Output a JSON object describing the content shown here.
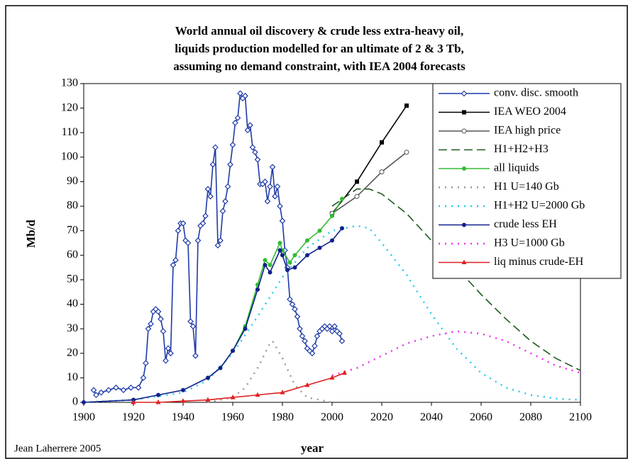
{
  "chart_data": {
    "type": "line",
    "title": [
      "World annual oil discovery & crude less extra-heavy oil,",
      "liquids production modelled for an ultimate of 2 & 3 Tb,",
      "assuming no demand constraint, with IEA 2004 forecasts"
    ],
    "y_label": "Mb/d",
    "x_label": "year",
    "credit": "Jean Laherrere 2005",
    "xlim": [
      1900,
      2100
    ],
    "xticks": [
      1900,
      1920,
      1940,
      1960,
      1980,
      2000,
      2020,
      2040,
      2060,
      2080,
      2100
    ],
    "ylim": [
      0,
      130
    ],
    "yticks": [
      0,
      10,
      20,
      30,
      40,
      50,
      60,
      70,
      80,
      90,
      100,
      110,
      120,
      130
    ],
    "grid": false,
    "legend": "upper right",
    "series": [
      {
        "name": "conv. disc. smooth",
        "color": "#1f3aa8",
        "marker": "open-diamond",
        "dash": "solid",
        "x": [
          1904,
          1905,
          1907,
          1910,
          1913,
          1916,
          1919,
          1922,
          1924,
          1925,
          1926,
          1927,
          1928,
          1929,
          1930,
          1931,
          1932,
          1933,
          1934,
          1935,
          1936,
          1937,
          1938,
          1939,
          1940,
          1941,
          1942,
          1943,
          1944,
          1945,
          1946,
          1947,
          1948,
          1949,
          1950,
          1951,
          1952,
          1953,
          1954,
          1955,
          1956,
          1957,
          1958,
          1959,
          1960,
          1961,
          1962,
          1963,
          1964,
          1965,
          1966,
          1967,
          1968,
          1969,
          1970,
          1971,
          1972,
          1973,
          1974,
          1975,
          1976,
          1977,
          1978,
          1979,
          1980,
          1981,
          1982,
          1983,
          1984,
          1985,
          1986,
          1987,
          1988,
          1989,
          1990,
          1991,
          1992,
          1993,
          1994,
          1995,
          1996,
          1997,
          1998,
          1999,
          2000,
          2001,
          2002,
          2003,
          2004
        ],
        "values": [
          5,
          3,
          4,
          5,
          6,
          5,
          6,
          6,
          10,
          16,
          30,
          32,
          37,
          38,
          37,
          34,
          29,
          17,
          22,
          20,
          56,
          58,
          70,
          73,
          73,
          66,
          65,
          33,
          31,
          19,
          66,
          72,
          73,
          76,
          87,
          84,
          97,
          104,
          64,
          66,
          78,
          82,
          88,
          97,
          105,
          114,
          116,
          126,
          124,
          125,
          111,
          113,
          104,
          102,
          99,
          89,
          89,
          90,
          82,
          88,
          96,
          84,
          88,
          80,
          74,
          62,
          55,
          42,
          40,
          38,
          35,
          30,
          27,
          25,
          22,
          21,
          20,
          23,
          27,
          29,
          30,
          31,
          30,
          31,
          29,
          31,
          29,
          28,
          25
        ]
      },
      {
        "name": "IEA WEO 2004",
        "color": "#000000",
        "marker": "square",
        "dash": "solid",
        "x": [
          2000,
          2010,
          2020,
          2030
        ],
        "values": [
          77,
          90,
          106,
          121
        ]
      },
      {
        "name": "IEA high price",
        "color": "#555555",
        "marker": "open-circle",
        "dash": "solid",
        "x": [
          2000,
          2010,
          2020,
          2030
        ],
        "values": [
          77,
          84,
          94,
          102
        ]
      },
      {
        "name": "H1+H2+H3",
        "color": "#1e5a1e",
        "marker": "none",
        "dash": "dashed",
        "x": [
          2000,
          2010,
          2015,
          2020,
          2030,
          2040,
          2050,
          2060,
          2070,
          2080,
          2090,
          2100
        ],
        "values": [
          80,
          87,
          87,
          85,
          77,
          66,
          55,
          44,
          34,
          25,
          18,
          13
        ]
      },
      {
        "name": "all liquids",
        "color": "#33bb33",
        "marker": "dot",
        "dash": "solid",
        "x": [
          1950,
          1955,
          1960,
          1965,
          1970,
          1973,
          1975,
          1979,
          1980,
          1983,
          1985,
          1990,
          1995,
          2000,
          2004
        ],
        "values": [
          10,
          14,
          21,
          31,
          48,
          58,
          56,
          65,
          62,
          57,
          60,
          66,
          70,
          76,
          83
        ]
      },
      {
        "name": "H1 U=140 Gb",
        "color": "#999999",
        "marker": "none",
        "dash": "dotted",
        "x": [
          1950,
          1960,
          1965,
          1970,
          1975,
          1976,
          1980,
          1985,
          1990,
          2000
        ],
        "values": [
          0,
          2,
          6,
          14,
          24,
          25,
          18,
          7,
          2,
          0
        ]
      },
      {
        "name": "H1+H2 U=2000 Gb",
        "color": "#22ccee",
        "marker": "none",
        "dash": "dotted",
        "x": [
          1900,
          1920,
          1940,
          1950,
          1960,
          1970,
          1980,
          1990,
          2000,
          2010,
          2015,
          2020,
          2030,
          2040,
          2050,
          2060,
          2070,
          2080,
          2090,
          2100
        ],
        "values": [
          0,
          1,
          4,
          9,
          20,
          35,
          51,
          63,
          70,
          72,
          71,
          65,
          52,
          36,
          22,
          12,
          6,
          3,
          1.5,
          1
        ]
      },
      {
        "name": "crude less EH",
        "color": "#10208c",
        "marker": "dot",
        "dash": "solid",
        "x": [
          1900,
          1920,
          1930,
          1940,
          1950,
          1955,
          1960,
          1965,
          1970,
          1973,
          1975,
          1979,
          1980,
          1982,
          1985,
          1990,
          1995,
          2000,
          2004
        ],
        "values": [
          0,
          1,
          3,
          5,
          10,
          14,
          21,
          30,
          46,
          56,
          53,
          62,
          60,
          54,
          55,
          60,
          63,
          66,
          71
        ]
      },
      {
        "name": "H3 U=1000 Gb",
        "color": "#ee33ee",
        "marker": "none",
        "dash": "dotted",
        "x": [
          2000,
          2010,
          2020,
          2030,
          2040,
          2050,
          2060,
          2070,
          2080,
          2090,
          2100
        ],
        "values": [
          11,
          14,
          19,
          24,
          27,
          29,
          28,
          25,
          20,
          15,
          12
        ]
      },
      {
        "name": "liq minus crude-EH",
        "color": "#e02020",
        "marker": "triangle",
        "dash": "solid",
        "x": [
          1920,
          1930,
          1940,
          1950,
          1960,
          1970,
          1980,
          1990,
          2000,
          2005
        ],
        "values": [
          0,
          0,
          0.5,
          1,
          2,
          3,
          4,
          7,
          10,
          12
        ]
      }
    ]
  }
}
